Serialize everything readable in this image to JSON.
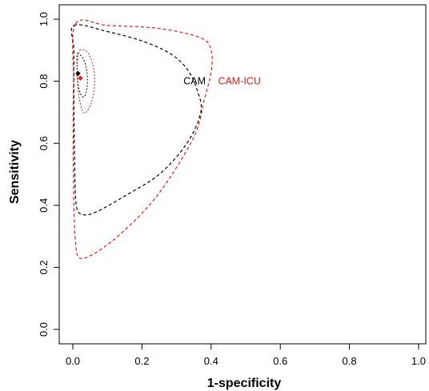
{
  "chart_data": {
    "type": "scatter",
    "title": "",
    "xlabel": "1-specificity",
    "ylabel": "Sensitivity",
    "xlim": [
      0,
      1
    ],
    "ylim": [
      0,
      1
    ],
    "x_ticks": [
      "0.0",
      "0.2",
      "0.4",
      "0.6",
      "0.8",
      "1.0"
    ],
    "y_ticks": [
      "0.0",
      "0.2",
      "0.4",
      "0.6",
      "0.8",
      "1.0"
    ],
    "grid": false,
    "colors": {
      "CAM": "#000000",
      "CAM-ICU": "#e41a1c"
    },
    "summary_points": [
      {
        "name": "CAM",
        "x": 0.015,
        "y": 0.825,
        "color": "#000000"
      },
      {
        "name": "CAM-ICU",
        "x": 0.022,
        "y": 0.81,
        "color": "#e41a1c"
      }
    ],
    "annotations": [
      {
        "text": "CAM",
        "x": 0.32,
        "y": 0.8,
        "color": "#000000"
      },
      {
        "text": "CAM-ICU",
        "x": 0.42,
        "y": 0.8,
        "color": "#e41a1c"
      }
    ],
    "confidence_regions": [
      {
        "series": "CAM",
        "color": "#000000",
        "points": [
          [
            0.014,
            0.89
          ],
          [
            0.031,
            0.87
          ],
          [
            0.041,
            0.83
          ],
          [
            0.041,
            0.78
          ],
          [
            0.033,
            0.75
          ],
          [
            0.022,
            0.76
          ],
          [
            0.014,
            0.8
          ],
          [
            0.012,
            0.85
          ],
          [
            0.014,
            0.89
          ]
        ]
      },
      {
        "series": "CAM-ICU",
        "color": "#e41a1c",
        "points": [
          [
            0.02,
            0.9
          ],
          [
            0.045,
            0.89
          ],
          [
            0.062,
            0.83
          ],
          [
            0.06,
            0.76
          ],
          [
            0.045,
            0.71
          ],
          [
            0.03,
            0.7
          ],
          [
            0.018,
            0.75
          ],
          [
            0.012,
            0.82
          ],
          [
            0.014,
            0.87
          ],
          [
            0.02,
            0.9
          ]
        ]
      }
    ],
    "prediction_regions": [
      {
        "series": "CAM",
        "color": "#000000",
        "points": [
          [
            0.003,
            0.98
          ],
          [
            0.1,
            0.96
          ],
          [
            0.2,
            0.93
          ],
          [
            0.28,
            0.89
          ],
          [
            0.33,
            0.84
          ],
          [
            0.36,
            0.77
          ],
          [
            0.37,
            0.7
          ],
          [
            0.33,
            0.6
          ],
          [
            0.25,
            0.5
          ],
          [
            0.15,
            0.43
          ],
          [
            0.07,
            0.38
          ],
          [
            0.03,
            0.37
          ],
          [
            0.01,
            0.4
          ],
          [
            0.005,
            0.55
          ],
          [
            0.003,
            0.75
          ],
          [
            0.003,
            0.9
          ],
          [
            0.003,
            0.98
          ]
        ]
      },
      {
        "series": "CAM-ICU",
        "color": "#e41a1c",
        "points": [
          [
            0.008,
            0.985
          ],
          [
            0.1,
            0.98
          ],
          [
            0.25,
            0.97
          ],
          [
            0.37,
            0.94
          ],
          [
            0.4,
            0.9
          ],
          [
            0.4,
            0.83
          ],
          [
            0.38,
            0.74
          ],
          [
            0.35,
            0.62
          ],
          [
            0.25,
            0.44
          ],
          [
            0.15,
            0.32
          ],
          [
            0.07,
            0.25
          ],
          [
            0.02,
            0.23
          ],
          [
            0.008,
            0.28
          ],
          [
            0.003,
            0.4
          ],
          [
            0.001,
            0.6
          ],
          [
            0.002,
            0.8
          ],
          [
            0.008,
            0.985
          ]
        ]
      }
    ]
  }
}
